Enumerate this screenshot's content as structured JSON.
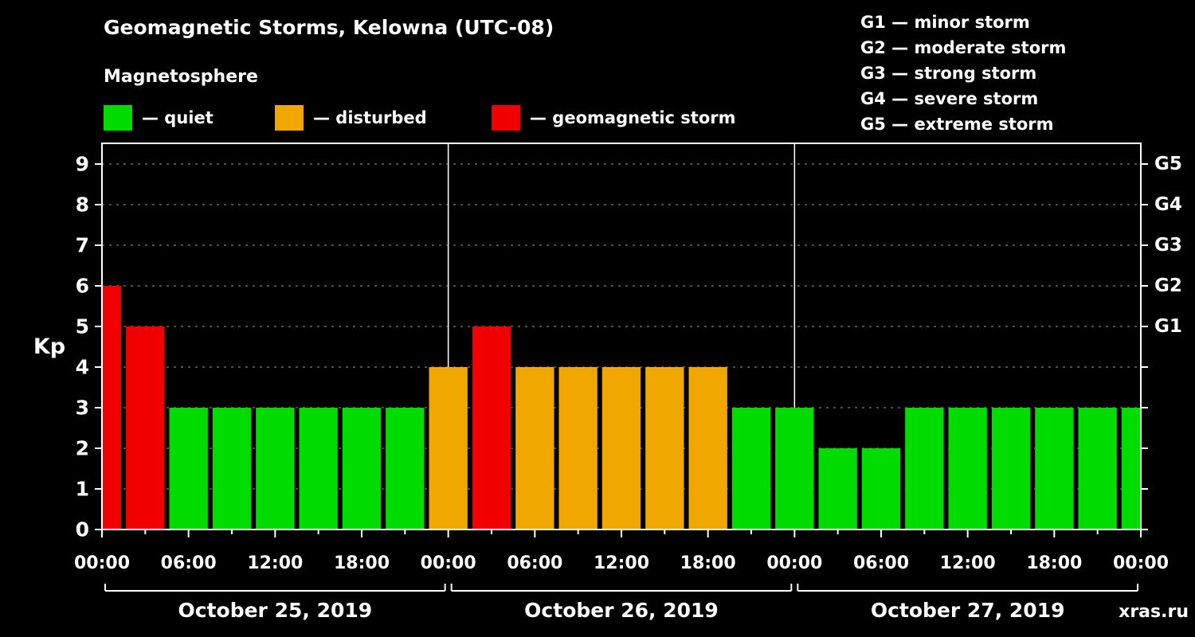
{
  "title": "Geomagnetic Storms, Kelowna (UTC-08)",
  "subtitle": "Magnetosphere",
  "legend": {
    "items": [
      {
        "label": "— quiet",
        "color": "#00dc00"
      },
      {
        "label": "— disturbed",
        "color": "#f0a800"
      },
      {
        "label": "— geomagnetic storm",
        "color": "#f00000"
      }
    ]
  },
  "storm_scale_legend": {
    "lines": [
      "G1 — minor storm",
      "G2 — moderate storm",
      "G3 — strong storm",
      "G4 — severe storm",
      "G5 — extreme storm"
    ]
  },
  "watermark": "xras.ru",
  "chart_data": {
    "type": "bar",
    "title": "Geomagnetic Storms, Kelowna (UTC-08)",
    "ylabel": "Kp",
    "ylim": [
      0,
      9
    ],
    "yticks": [
      0,
      1,
      2,
      3,
      4,
      5,
      6,
      7,
      8,
      9
    ],
    "grid": {
      "horizontal_dashed": true,
      "color": "#9a9a9a"
    },
    "x_unit": "hours from start (Oct 25 2019 00:00 UTC-08)",
    "x_range_hours": [
      0,
      72
    ],
    "bar_interval_hours": 3,
    "bar_center_hours": [
      0,
      3,
      6,
      9,
      12,
      15,
      18,
      21,
      24,
      27,
      30,
      33,
      36,
      39,
      42,
      45,
      48,
      51,
      54,
      57,
      60,
      63,
      66,
      69,
      72
    ],
    "values": [
      6,
      5,
      3,
      3,
      3,
      3,
      3,
      3,
      4,
      5,
      4,
      4,
      4,
      4,
      4,
      3,
      3,
      2,
      2,
      3,
      3,
      3,
      3,
      3,
      3
    ],
    "severity_rule": {
      "quiet_max_kp": 3,
      "disturbed_kp": 4,
      "storm_min_kp": 5
    },
    "severity_colors": {
      "quiet": "#00dc00",
      "disturbed": "#f0a800",
      "storm": "#f00000"
    },
    "xtick_hours": [
      0,
      6,
      12,
      18,
      24,
      30,
      36,
      42,
      48,
      54,
      60,
      66,
      72
    ],
    "xtick_labels": [
      "00:00",
      "06:00",
      "12:00",
      "18:00",
      "00:00",
      "06:00",
      "12:00",
      "18:00",
      "00:00",
      "06:00",
      "12:00",
      "18:00",
      "00:00"
    ],
    "right_axis": [
      {
        "kp": 9,
        "label": "G5"
      },
      {
        "kp": 8,
        "label": "G4"
      },
      {
        "kp": 7,
        "label": "G3"
      },
      {
        "kp": 6,
        "label": "G2"
      },
      {
        "kp": 5,
        "label": "G1"
      }
    ],
    "day_dividers_hours": [
      24,
      48
    ],
    "days": [
      {
        "label": "October 25, 2019",
        "start_hour": 0,
        "end_hour": 24
      },
      {
        "label": "October 26, 2019",
        "start_hour": 24,
        "end_hour": 48
      },
      {
        "label": "October 27, 2019",
        "start_hour": 48,
        "end_hour": 72
      }
    ]
  }
}
